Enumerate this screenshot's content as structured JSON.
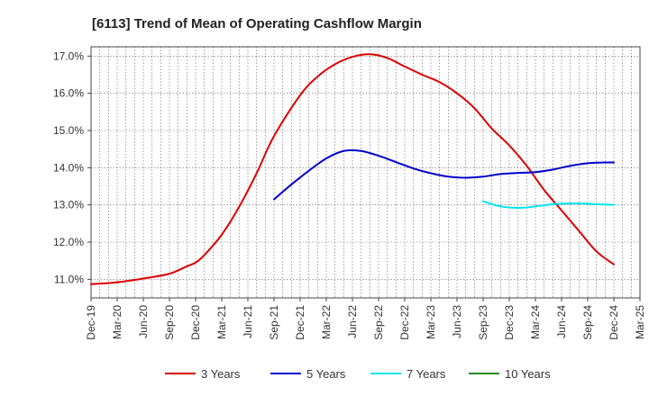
{
  "chart_data": {
    "type": "line",
    "title": "[6113]  Trend of Mean of Operating Cashflow Margin",
    "xlabel": "",
    "ylabel": "",
    "ylim": [
      10.5,
      17.25
    ],
    "yticks": [
      11.0,
      12.0,
      13.0,
      14.0,
      15.0,
      16.0,
      17.0
    ],
    "ytick_labels": [
      "11.0%",
      "12.0%",
      "13.0%",
      "14.0%",
      "15.0%",
      "16.0%",
      "17.0%"
    ],
    "x_index_range": [
      0,
      63
    ],
    "x_ticks": [
      {
        "i": 0,
        "label": "Dec-19"
      },
      {
        "i": 3,
        "label": "Mar-20"
      },
      {
        "i": 6,
        "label": "Jun-20"
      },
      {
        "i": 9,
        "label": "Sep-20"
      },
      {
        "i": 12,
        "label": "Dec-20"
      },
      {
        "i": 15,
        "label": "Mar-21"
      },
      {
        "i": 18,
        "label": "Jun-21"
      },
      {
        "i": 21,
        "label": "Sep-21"
      },
      {
        "i": 24,
        "label": "Dec-21"
      },
      {
        "i": 27,
        "label": "Mar-22"
      },
      {
        "i": 30,
        "label": "Jun-22"
      },
      {
        "i": 33,
        "label": "Sep-22"
      },
      {
        "i": 36,
        "label": "Dec-22"
      },
      {
        "i": 39,
        "label": "Mar-23"
      },
      {
        "i": 42,
        "label": "Jun-23"
      },
      {
        "i": 45,
        "label": "Sep-23"
      },
      {
        "i": 48,
        "label": "Dec-23"
      },
      {
        "i": 51,
        "label": "Mar-24"
      },
      {
        "i": 54,
        "label": "Jun-24"
      },
      {
        "i": 57,
        "label": "Sep-24"
      },
      {
        "i": 60,
        "label": "Dec-24"
      },
      {
        "i": 63,
        "label": "Mar-25"
      }
    ],
    "grid": true,
    "legend_position": "bottom",
    "series": [
      {
        "name": "3 Years",
        "color": "#dd0000",
        "points": [
          [
            0,
            10.87
          ],
          [
            3,
            10.92
          ],
          [
            6,
            11.02
          ],
          [
            9,
            11.15
          ],
          [
            11,
            11.35
          ],
          [
            12,
            11.45
          ],
          [
            13,
            11.65
          ],
          [
            15,
            12.2
          ],
          [
            17,
            12.95
          ],
          [
            19,
            13.85
          ],
          [
            21,
            14.85
          ],
          [
            24,
            15.95
          ],
          [
            26,
            16.45
          ],
          [
            28,
            16.78
          ],
          [
            30,
            16.98
          ],
          [
            32,
            17.05
          ],
          [
            34,
            16.95
          ],
          [
            36,
            16.72
          ],
          [
            38,
            16.5
          ],
          [
            40,
            16.3
          ],
          [
            42,
            16.0
          ],
          [
            44,
            15.6
          ],
          [
            46,
            15.05
          ],
          [
            48,
            14.6
          ],
          [
            50,
            14.05
          ],
          [
            52,
            13.4
          ],
          [
            54,
            12.85
          ],
          [
            56,
            12.3
          ],
          [
            58,
            11.75
          ],
          [
            60,
            11.4
          ]
        ]
      },
      {
        "name": "5 Years",
        "color": "#0000cc",
        "points": [
          [
            21,
            13.15
          ],
          [
            23,
            13.55
          ],
          [
            25,
            13.92
          ],
          [
            27,
            14.25
          ],
          [
            29,
            14.45
          ],
          [
            31,
            14.45
          ],
          [
            33,
            14.32
          ],
          [
            35,
            14.15
          ],
          [
            37,
            13.98
          ],
          [
            39,
            13.85
          ],
          [
            41,
            13.76
          ],
          [
            43,
            13.73
          ],
          [
            45,
            13.76
          ],
          [
            47,
            13.83
          ],
          [
            49,
            13.86
          ],
          [
            51,
            13.88
          ],
          [
            53,
            13.95
          ],
          [
            55,
            14.05
          ],
          [
            57,
            14.12
          ],
          [
            59,
            14.14
          ],
          [
            60,
            14.14
          ]
        ]
      },
      {
        "name": "7 Years",
        "color": "#00e5ee",
        "points": [
          [
            45,
            13.1
          ],
          [
            46,
            13.02
          ],
          [
            47,
            12.96
          ],
          [
            48,
            12.93
          ],
          [
            49,
            12.92
          ],
          [
            50,
            12.93
          ],
          [
            51,
            12.96
          ],
          [
            52,
            12.99
          ],
          [
            53,
            13.02
          ],
          [
            54,
            13.03
          ],
          [
            55,
            13.04
          ],
          [
            56,
            13.04
          ],
          [
            57,
            13.03
          ],
          [
            58,
            13.02
          ],
          [
            59,
            13.01
          ],
          [
            60,
            13.0
          ]
        ]
      },
      {
        "name": "10 Years",
        "color": "#228b22",
        "points": []
      }
    ]
  }
}
